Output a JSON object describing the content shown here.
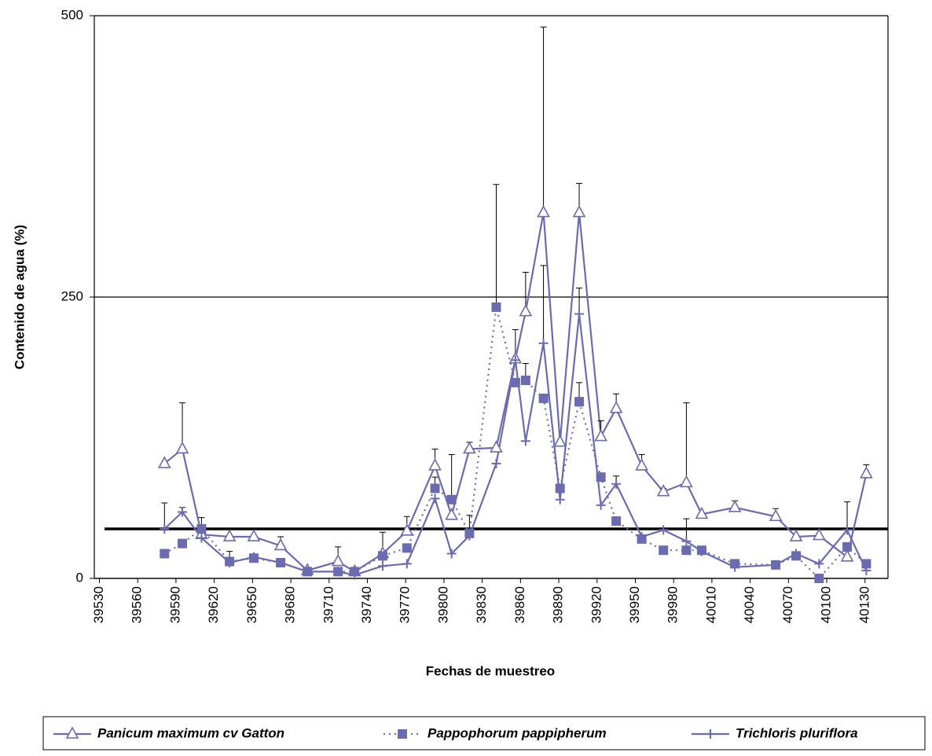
{
  "chart_data": {
    "type": "line",
    "y_label": "Contenido de agua (%)",
    "x_label": "Fechas de muestreo",
    "x": [
      39581,
      39595,
      39610,
      39632,
      39651,
      39672,
      39693,
      39717,
      39730,
      39752,
      39771,
      39793,
      39806,
      39820,
      39841,
      39856,
      39864,
      39878,
      39891,
      39906,
      39923,
      39935,
      39955,
      39972,
      39990,
      40002,
      40028,
      40060,
      40076,
      40094,
      40116,
      40131
    ],
    "xlim": [
      39526,
      40148
    ],
    "xticks": [
      39530,
      39560,
      39590,
      39620,
      39650,
      39680,
      39710,
      39740,
      39770,
      39800,
      39830,
      39860,
      39890,
      39920,
      39950,
      39980,
      40010,
      40040,
      40070,
      40100,
      40130
    ],
    "ylim": [
      0,
      500
    ],
    "yticks": [
      0,
      250,
      500
    ],
    "grid": true,
    "reference_line": 44,
    "legend": "bottom",
    "series": [
      {
        "name": "Panicum maximum cv Gatton",
        "color": "#6b6baf",
        "marker": "triangle",
        "dash": "solid",
        "values": [
          102,
          115,
          39,
          37,
          37,
          29,
          7,
          15,
          6,
          22,
          42,
          100,
          56,
          115,
          116,
          195,
          237,
          325,
          121,
          325,
          126,
          151,
          100,
          77,
          85,
          57,
          63,
          55,
          37,
          38,
          19,
          93
        ],
        "errors": [
          null,
          41,
          null,
          null,
          null,
          8,
          null,
          13,
          null,
          null,
          13,
          15,
          null,
          6,
          null,
          null,
          35,
          165,
          null,
          26,
          14,
          13,
          10,
          3,
          71,
          null,
          6,
          7,
          null,
          null,
          null,
          8
        ]
      },
      {
        "name": "Pappophorum pappipherum",
        "color": "#6b6baf",
        "marker": "square",
        "dash": "dotted",
        "values": [
          22,
          31,
          44,
          15,
          18,
          14,
          6,
          6,
          6,
          20,
          27,
          80,
          70,
          40,
          241,
          174,
          176,
          160,
          80,
          157,
          90,
          51,
          35,
          25,
          25,
          25,
          13,
          12,
          20,
          0,
          28,
          13
        ],
        "errors": [
          null,
          null,
          null,
          null,
          null,
          null,
          null,
          null,
          null,
          null,
          null,
          10,
          40,
          null,
          109,
          null,
          15,
          null,
          null,
          17,
          null,
          null,
          null,
          null,
          null,
          null,
          null,
          null,
          null,
          null,
          null,
          null
        ]
      },
      {
        "name": "Trichloris pluriflora",
        "color": "#6b6baf",
        "marker": "plus",
        "dash": "solid",
        "values": [
          44,
          59,
          36,
          14,
          19,
          14,
          6,
          6,
          3,
          11,
          13,
          71,
          22,
          38,
          102,
          194,
          122,
          209,
          70,
          235,
          65,
          84,
          37,
          43,
          33,
          24,
          10,
          12,
          22,
          13,
          43,
          7
        ],
        "errors": [
          23,
          4,
          18,
          10,
          null,
          null,
          null,
          null,
          null,
          30,
          null,
          null,
          null,
          18,
          null,
          27,
          null,
          69,
          null,
          23,
          null,
          7,
          null,
          null,
          20,
          null,
          null,
          null,
          null,
          null,
          25,
          null
        ]
      }
    ]
  }
}
